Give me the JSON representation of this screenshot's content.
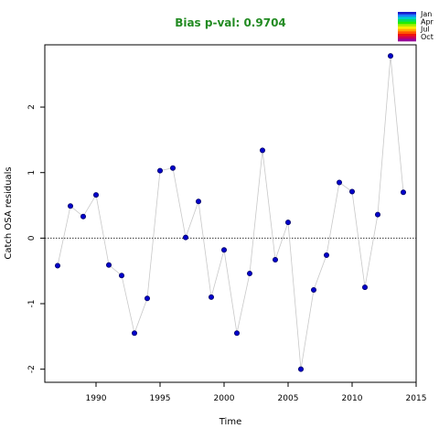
{
  "chart_data": {
    "type": "scatter",
    "title": "Bias p-val: 0.9704",
    "xlabel": "Time",
    "ylabel": "Catch OSA residuals",
    "xlim": [
      1986,
      2015
    ],
    "ylim": [
      -2.2,
      2.95
    ],
    "xticks": [
      1990,
      1995,
      2000,
      2005,
      2010,
      2015
    ],
    "yticks": [
      -2,
      -1,
      0,
      1,
      2
    ],
    "reference_line": 0,
    "grid": false,
    "legend_position": "top-right",
    "series": [
      {
        "x": [
          1987,
          1988,
          1989,
          1990,
          1991,
          1992,
          1993,
          1994,
          1995,
          1996,
          1997,
          1998,
          1999,
          2000,
          2001,
          2002,
          2003,
          2004,
          2005,
          2006,
          2007,
          2008,
          2009,
          2010,
          2011,
          2012,
          2013,
          2014
        ],
        "y": [
          -0.42,
          0.49,
          0.33,
          0.66,
          -0.41,
          -0.57,
          -1.45,
          -0.92,
          1.03,
          1.07,
          0.01,
          0.56,
          -0.9,
          -0.18,
          -1.45,
          -0.54,
          1.34,
          -0.33,
          0.24,
          -2.0,
          -0.79,
          -0.26,
          0.85,
          0.71,
          -0.75,
          0.36,
          2.78,
          0.7
        ]
      }
    ],
    "legend": {
      "entries": [
        "Jan",
        "Apr",
        "Jul",
        "Oct"
      ],
      "colors": [
        "#1a1acc",
        "#1a80ff",
        "#00cccc",
        "#00dd66",
        "#22ee00",
        "#aaee00",
        "#ffee00",
        "#ffaa00",
        "#ff5500",
        "#ee1111",
        "#cc0055",
        "#990099"
      ]
    },
    "colors": {
      "title": "#228B22",
      "point_fill": "#0000cc",
      "point_stroke": "#000066",
      "line": "#c8c8c8",
      "refline": "#333333"
    }
  }
}
